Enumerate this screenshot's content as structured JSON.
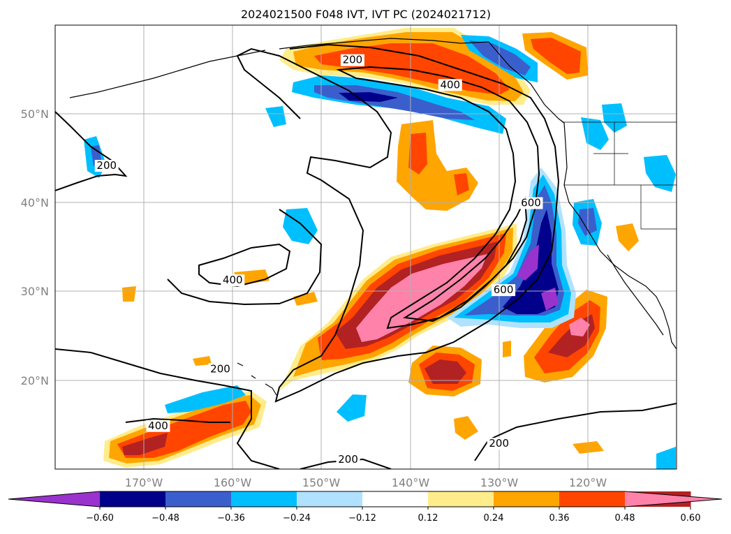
{
  "chart_data": {
    "type": "contour-map",
    "title": "2024021500 F048 IVT, IVT PC (2024021712)",
    "lon_range": [
      -180,
      -110
    ],
    "lat_range": [
      10,
      60
    ],
    "lat_ticks": [
      {
        "value": 50,
        "label": "50°N"
      },
      {
        "value": 40,
        "label": "40°N"
      },
      {
        "value": 30,
        "label": "30°N"
      },
      {
        "value": 20,
        "label": "20°N"
      }
    ],
    "lon_ticks": [
      {
        "value": -170,
        "label": "170°W"
      },
      {
        "value": -160,
        "label": "160°W"
      },
      {
        "value": -150,
        "label": "150°W"
      },
      {
        "value": -140,
        "label": "140°W"
      },
      {
        "value": -130,
        "label": "130°W"
      },
      {
        "value": -120,
        "label": "120°W"
      }
    ],
    "grid": true,
    "colorbar": {
      "orientation": "horizontal",
      "extend": "both",
      "levels": [
        {
          "label": "−0.60",
          "value": -0.6
        },
        {
          "label": "−0.48",
          "value": -0.48
        },
        {
          "label": "−0.36",
          "value": -0.36
        },
        {
          "label": "−0.24",
          "value": -0.24
        },
        {
          "label": "−0.12",
          "value": -0.12
        },
        {
          "label": "0.12",
          "value": 0.12
        },
        {
          "label": "0.24",
          "value": 0.24
        },
        {
          "label": "0.36",
          "value": 0.36
        },
        {
          "label": "0.48",
          "value": 0.48
        },
        {
          "label": "0.60",
          "value": 0.6
        }
      ],
      "colors": [
        "#9a32cd",
        "#00008b",
        "#3a5fcd",
        "#00bfff",
        "#b0e2ff",
        "#ffffff",
        "#ffec8b",
        "#ffa500",
        "#ff4500",
        "#b22222",
        "#ff82ab"
      ]
    },
    "contour_labels": [
      {
        "text": "200",
        "lon": -146.5,
        "lat": 55.7
      },
      {
        "text": "400",
        "lon": -135.5,
        "lat": 52.9
      },
      {
        "text": "200",
        "lon": -174.2,
        "lat": 43.8
      },
      {
        "text": "400",
        "lon": -160.0,
        "lat": 30.9
      },
      {
        "text": "600",
        "lon": -126.4,
        "lat": 39.6
      },
      {
        "text": "600",
        "lon": -129.5,
        "lat": 29.8
      },
      {
        "text": "200",
        "lon": -161.4,
        "lat": 20.9
      },
      {
        "text": "400",
        "lon": -168.4,
        "lat": 14.5
      },
      {
        "text": "200",
        "lon": -130.0,
        "lat": 12.5
      },
      {
        "text": "200",
        "lon": -147.0,
        "lat": 10.7
      }
    ]
  }
}
